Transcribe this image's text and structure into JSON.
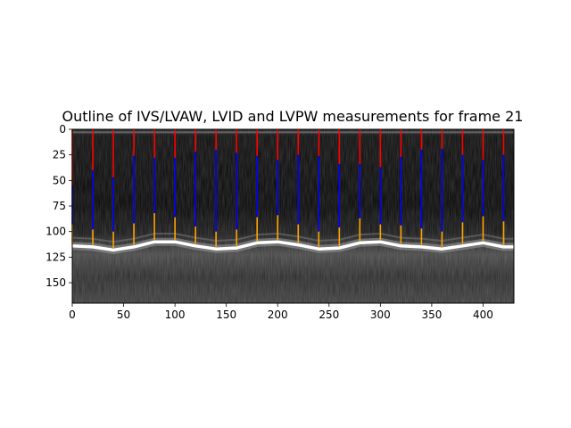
{
  "chart_data": {
    "type": "line",
    "title": "Outline of IVS/LVAW, LVID and LVPW measurements for frame 21",
    "xlabel": "",
    "ylabel": "",
    "xlim": [
      0,
      430
    ],
    "ylim": [
      170,
      0
    ],
    "x_ticks": [
      0,
      50,
      100,
      150,
      200,
      250,
      300,
      350,
      400
    ],
    "y_ticks": [
      0,
      25,
      50,
      75,
      100,
      125,
      150
    ],
    "background_image": "grayscale M-mode echocardiogram",
    "series": [
      {
        "color": "#ff0000",
        "measurement": "IVS/LVAW",
        "segments": [
          {
            "x": 0,
            "y1": 0,
            "y2": 55
          },
          {
            "x": 20,
            "y1": 0,
            "y2": 40
          },
          {
            "x": 40,
            "y1": 0,
            "y2": 47
          },
          {
            "x": 60,
            "y1": 0,
            "y2": 26
          },
          {
            "x": 80,
            "y1": 0,
            "y2": 28
          },
          {
            "x": 100,
            "y1": 0,
            "y2": 28
          },
          {
            "x": 120,
            "y1": 0,
            "y2": 22
          },
          {
            "x": 140,
            "y1": 0,
            "y2": 20
          },
          {
            "x": 160,
            "y1": 0,
            "y2": 23
          },
          {
            "x": 180,
            "y1": 0,
            "y2": 26
          },
          {
            "x": 200,
            "y1": 0,
            "y2": 30
          },
          {
            "x": 220,
            "y1": 0,
            "y2": 25
          },
          {
            "x": 240,
            "y1": 0,
            "y2": 26
          },
          {
            "x": 260,
            "y1": 0,
            "y2": 34
          },
          {
            "x": 280,
            "y1": 0,
            "y2": 34
          },
          {
            "x": 300,
            "y1": 0,
            "y2": 37
          },
          {
            "x": 320,
            "y1": 0,
            "y2": 27
          },
          {
            "x": 340,
            "y1": 0,
            "y2": 20
          },
          {
            "x": 360,
            "y1": 0,
            "y2": 19
          },
          {
            "x": 380,
            "y1": 0,
            "y2": 25
          },
          {
            "x": 400,
            "y1": 0,
            "y2": 30
          },
          {
            "x": 420,
            "y1": 0,
            "y2": 25
          }
        ]
      },
      {
        "color": "#0000ff",
        "measurement": "LVID",
        "segments": [
          {
            "x": 0,
            "y1": 55,
            "y2": 93
          },
          {
            "x": 20,
            "y1": 40,
            "y2": 98
          },
          {
            "x": 40,
            "y1": 47,
            "y2": 100
          },
          {
            "x": 60,
            "y1": 26,
            "y2": 92
          },
          {
            "x": 80,
            "y1": 28,
            "y2": 82
          },
          {
            "x": 100,
            "y1": 28,
            "y2": 86
          },
          {
            "x": 120,
            "y1": 22,
            "y2": 95
          },
          {
            "x": 140,
            "y1": 20,
            "y2": 100
          },
          {
            "x": 160,
            "y1": 23,
            "y2": 98
          },
          {
            "x": 180,
            "y1": 26,
            "y2": 86
          },
          {
            "x": 200,
            "y1": 30,
            "y2": 84
          },
          {
            "x": 220,
            "y1": 25,
            "y2": 93
          },
          {
            "x": 240,
            "y1": 26,
            "y2": 100
          },
          {
            "x": 260,
            "y1": 34,
            "y2": 96
          },
          {
            "x": 280,
            "y1": 34,
            "y2": 87
          },
          {
            "x": 300,
            "y1": 37,
            "y2": 93
          },
          {
            "x": 320,
            "y1": 27,
            "y2": 94
          },
          {
            "x": 340,
            "y1": 20,
            "y2": 97
          },
          {
            "x": 360,
            "y1": 19,
            "y2": 100
          },
          {
            "x": 380,
            "y1": 25,
            "y2": 91
          },
          {
            "x": 400,
            "y1": 30,
            "y2": 85
          },
          {
            "x": 420,
            "y1": 25,
            "y2": 90
          }
        ]
      },
      {
        "color": "#ffa500",
        "measurement": "LVPW",
        "segments": [
          {
            "x": 0,
            "y1": 93,
            "y2": 112
          },
          {
            "x": 20,
            "y1": 98,
            "y2": 113
          },
          {
            "x": 40,
            "y1": 100,
            "y2": 116
          },
          {
            "x": 60,
            "y1": 92,
            "y2": 113
          },
          {
            "x": 80,
            "y1": 82,
            "y2": 108
          },
          {
            "x": 100,
            "y1": 86,
            "y2": 108
          },
          {
            "x": 120,
            "y1": 95,
            "y2": 112
          },
          {
            "x": 140,
            "y1": 100,
            "y2": 115
          },
          {
            "x": 160,
            "y1": 98,
            "y2": 114
          },
          {
            "x": 180,
            "y1": 86,
            "y2": 109
          },
          {
            "x": 200,
            "y1": 84,
            "y2": 108
          },
          {
            "x": 220,
            "y1": 93,
            "y2": 111
          },
          {
            "x": 240,
            "y1": 100,
            "y2": 115
          },
          {
            "x": 260,
            "y1": 96,
            "y2": 114
          },
          {
            "x": 280,
            "y1": 87,
            "y2": 109
          },
          {
            "x": 300,
            "y1": 93,
            "y2": 108
          },
          {
            "x": 320,
            "y1": 94,
            "y2": 112
          },
          {
            "x": 340,
            "y1": 97,
            "y2": 113
          },
          {
            "x": 360,
            "y1": 100,
            "y2": 115
          },
          {
            "x": 380,
            "y1": 91,
            "y2": 112
          },
          {
            "x": 400,
            "y1": 85,
            "y2": 109
          },
          {
            "x": 420,
            "y1": 90,
            "y2": 113
          }
        ]
      }
    ]
  }
}
